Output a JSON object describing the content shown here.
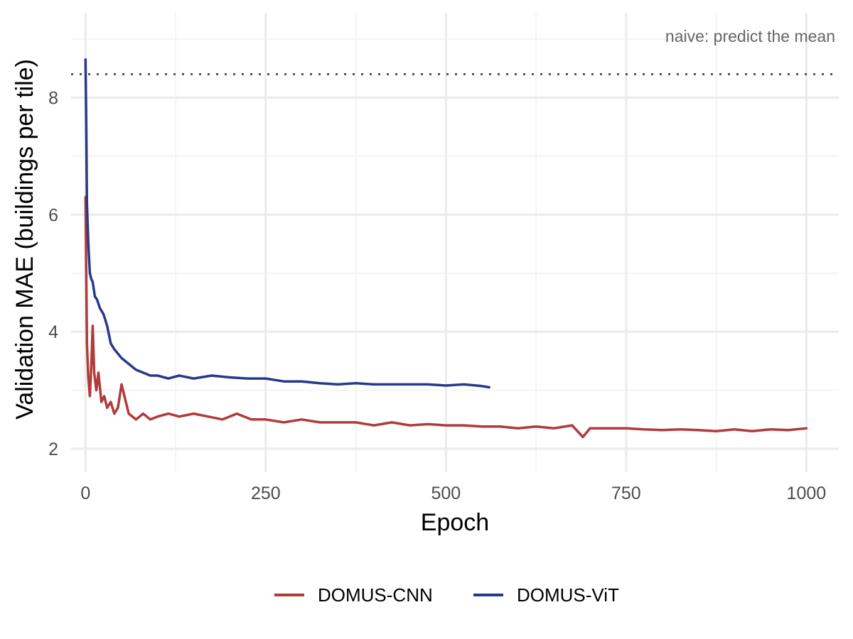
{
  "chart_data": {
    "type": "line",
    "xlabel": "Epoch",
    "ylabel": "Validation MAE (buildings per tile)",
    "xlim": [
      -20,
      1045
    ],
    "ylim": [
      1.6,
      9.45
    ],
    "x_ticks": [
      0,
      250,
      500,
      750,
      1000
    ],
    "x_tick_labels": [
      "0",
      "250",
      "500",
      "750",
      "1000"
    ],
    "y_ticks": [
      2,
      4,
      6,
      8
    ],
    "y_tick_labels": [
      "2",
      "4",
      "6",
      "8"
    ],
    "grid": true,
    "legend_position": "bottom",
    "reference_line": {
      "y": 8.4,
      "style": "dotted",
      "color": "#555555",
      "label": "naive: predict the mean"
    },
    "series": [
      {
        "name": "DOMUS-CNN",
        "color": "#b23a3a",
        "x": [
          0,
          2,
          4,
          6,
          8,
          10,
          12,
          15,
          18,
          22,
          26,
          30,
          35,
          40,
          45,
          50,
          60,
          70,
          80,
          90,
          100,
          115,
          130,
          150,
          170,
          190,
          210,
          230,
          250,
          275,
          300,
          325,
          350,
          375,
          400,
          425,
          450,
          475,
          500,
          525,
          550,
          575,
          600,
          625,
          650,
          675,
          690,
          700,
          725,
          750,
          775,
          800,
          825,
          850,
          875,
          900,
          925,
          950,
          975,
          1000
        ],
        "y": [
          6.3,
          3.8,
          3.2,
          2.9,
          3.4,
          4.1,
          3.3,
          3.0,
          3.3,
          2.8,
          2.9,
          2.7,
          2.8,
          2.6,
          2.7,
          3.1,
          2.6,
          2.5,
          2.6,
          2.5,
          2.55,
          2.6,
          2.55,
          2.6,
          2.55,
          2.5,
          2.6,
          2.5,
          2.5,
          2.45,
          2.5,
          2.45,
          2.45,
          2.45,
          2.4,
          2.45,
          2.4,
          2.42,
          2.4,
          2.4,
          2.38,
          2.38,
          2.35,
          2.38,
          2.35,
          2.4,
          2.2,
          2.35,
          2.35,
          2.35,
          2.33,
          2.32,
          2.33,
          2.32,
          2.3,
          2.33,
          2.3,
          2.33,
          2.32,
          2.35
        ]
      },
      {
        "name": "DOMUS-ViT",
        "color": "#27398b",
        "x": [
          0,
          1,
          2,
          4,
          6,
          8,
          10,
          13,
          16,
          20,
          25,
          30,
          35,
          40,
          50,
          60,
          70,
          80,
          90,
          100,
          115,
          130,
          150,
          175,
          200,
          225,
          250,
          275,
          300,
          325,
          350,
          375,
          400,
          425,
          450,
          475,
          500,
          525,
          550,
          560
        ],
        "y": [
          8.65,
          7.6,
          6.2,
          5.5,
          5.0,
          4.9,
          4.85,
          4.6,
          4.55,
          4.4,
          4.3,
          4.1,
          3.8,
          3.7,
          3.55,
          3.45,
          3.35,
          3.3,
          3.25,
          3.25,
          3.2,
          3.25,
          3.2,
          3.25,
          3.22,
          3.2,
          3.2,
          3.15,
          3.15,
          3.12,
          3.1,
          3.12,
          3.1,
          3.1,
          3.1,
          3.1,
          3.08,
          3.1,
          3.07,
          3.05
        ]
      }
    ]
  }
}
